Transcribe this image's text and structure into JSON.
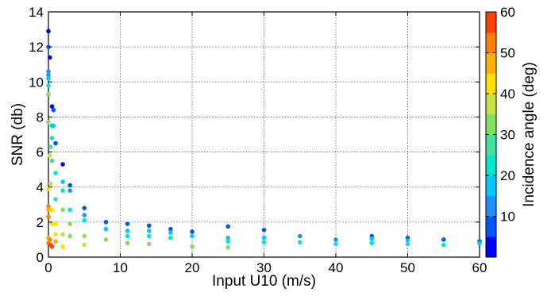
{
  "chart_data": {
    "type": "scatter",
    "xlabel": "Input U10 (m/s)",
    "ylabel": "SNR (db)",
    "xlim": [
      0,
      60
    ],
    "ylim": [
      0,
      14
    ],
    "xticks": [
      "0",
      "10",
      "20",
      "30",
      "40",
      "50",
      "60"
    ],
    "yticks": [
      "0",
      "2",
      "4",
      "6",
      "8",
      "10",
      "12",
      "14"
    ],
    "grid": true,
    "colorbar": {
      "label": "Incidence angle (deg)",
      "range": [
        0,
        60
      ],
      "ticks": [
        "10",
        "20",
        "30",
        "40",
        "50",
        "60"
      ],
      "colors": [
        "#0000ff",
        "#0055ff",
        "#1e90ff",
        "#00c8ff",
        "#00e8c8",
        "#40e0a0",
        "#80e060",
        "#c8e040",
        "#ffe000",
        "#ffb000",
        "#ff8000",
        "#ff4000"
      ]
    },
    "points": [
      {
        "x": 0,
        "y": 12.9,
        "c": 2
      },
      {
        "x": 0,
        "y": 12.0,
        "c": 8
      },
      {
        "x": 0.2,
        "y": 11.4,
        "c": 4
      },
      {
        "x": 0,
        "y": 10.6,
        "c": 12
      },
      {
        "x": 0,
        "y": 10.4,
        "c": 14
      },
      {
        "x": 0,
        "y": 10.2,
        "c": 17
      },
      {
        "x": 0,
        "y": 9.8,
        "c": 22
      },
      {
        "x": 0,
        "y": 9.3,
        "c": 30
      },
      {
        "x": 0.5,
        "y": 8.6,
        "c": 4
      },
      {
        "x": 0.7,
        "y": 8.4,
        "c": 6
      },
      {
        "x": 0,
        "y": 7.7,
        "c": 33
      },
      {
        "x": 0.5,
        "y": 7.5,
        "c": 15
      },
      {
        "x": 0.7,
        "y": 7.5,
        "c": 18
      },
      {
        "x": 0.5,
        "y": 6.8,
        "c": 20
      },
      {
        "x": 0.3,
        "y": 6.3,
        "c": 25
      },
      {
        "x": 1.0,
        "y": 6.5,
        "c": 6
      },
      {
        "x": 0.2,
        "y": 5.8,
        "c": 35
      },
      {
        "x": 0.5,
        "y": 5.5,
        "c": 28
      },
      {
        "x": 2.0,
        "y": 5.3,
        "c": 4
      },
      {
        "x": 1.0,
        "y": 4.8,
        "c": 22
      },
      {
        "x": 2.0,
        "y": 4.3,
        "c": 16
      },
      {
        "x": 3.0,
        "y": 4.1,
        "c": 9
      },
      {
        "x": 0.3,
        "y": 4.2,
        "c": 38
      },
      {
        "x": 3.0,
        "y": 3.8,
        "c": 12
      },
      {
        "x": 2.0,
        "y": 3.8,
        "c": 20
      },
      {
        "x": 0,
        "y": 3.9,
        "c": 40
      },
      {
        "x": 1.0,
        "y": 3.3,
        "c": 28
      },
      {
        "x": 0,
        "y": 2.9,
        "c": 50
      },
      {
        "x": 0,
        "y": 2.7,
        "c": 45
      },
      {
        "x": 0.5,
        "y": 2.7,
        "c": 42
      },
      {
        "x": 2.0,
        "y": 2.7,
        "c": 30
      },
      {
        "x": 3.0,
        "y": 2.7,
        "c": 24
      },
      {
        "x": 5.0,
        "y": 2.8,
        "c": 6
      },
      {
        "x": 0,
        "y": 2.3,
        "c": 52
      },
      {
        "x": 5.0,
        "y": 2.4,
        "c": 14
      },
      {
        "x": 5.0,
        "y": 2.1,
        "c": 20
      },
      {
        "x": 0.5,
        "y": 1.9,
        "c": 44
      },
      {
        "x": 1.0,
        "y": 1.9,
        "c": 40
      },
      {
        "x": 3.0,
        "y": 1.9,
        "c": 30
      },
      {
        "x": 8.0,
        "y": 2.0,
        "c": 5
      },
      {
        "x": 8.0,
        "y": 1.6,
        "c": 16
      },
      {
        "x": 11.0,
        "y": 1.9,
        "c": 8
      },
      {
        "x": 11.0,
        "y": 1.5,
        "c": 15
      },
      {
        "x": 11.0,
        "y": 1.2,
        "c": 22
      },
      {
        "x": 14.0,
        "y": 1.8,
        "c": 8
      },
      {
        "x": 14.0,
        "y": 1.5,
        "c": 15
      },
      {
        "x": 14.0,
        "y": 1.2,
        "c": 22
      },
      {
        "x": 17.0,
        "y": 1.6,
        "c": 8
      },
      {
        "x": 17.0,
        "y": 1.4,
        "c": 15
      },
      {
        "x": 17.0,
        "y": 1.1,
        "c": 22
      },
      {
        "x": 20.0,
        "y": 1.45,
        "c": 8
      },
      {
        "x": 20.0,
        "y": 1.2,
        "c": 15
      },
      {
        "x": 25.0,
        "y": 1.75,
        "c": 6
      },
      {
        "x": 25.0,
        "y": 1.1,
        "c": 15
      },
      {
        "x": 25.0,
        "y": 0.9,
        "c": 22
      },
      {
        "x": 30.0,
        "y": 1.55,
        "c": 6
      },
      {
        "x": 30.0,
        "y": 1.1,
        "c": 15
      },
      {
        "x": 30.0,
        "y": 0.85,
        "c": 22
      },
      {
        "x": 35.0,
        "y": 1.2,
        "c": 10
      },
      {
        "x": 35.0,
        "y": 0.85,
        "c": 20
      },
      {
        "x": 40.0,
        "y": 1.0,
        "c": 10
      },
      {
        "x": 40.0,
        "y": 0.75,
        "c": 20
      },
      {
        "x": 45.0,
        "y": 1.2,
        "c": 8
      },
      {
        "x": 45.0,
        "y": 1.05,
        "c": 15
      },
      {
        "x": 45.0,
        "y": 0.8,
        "c": 22
      },
      {
        "x": 50.0,
        "y": 1.1,
        "c": 8
      },
      {
        "x": 50.0,
        "y": 0.95,
        "c": 15
      },
      {
        "x": 50.0,
        "y": 0.75,
        "c": 22
      },
      {
        "x": 55.0,
        "y": 1.0,
        "c": 8
      },
      {
        "x": 55.0,
        "y": 0.7,
        "c": 20
      },
      {
        "x": 60.0,
        "y": 0.9,
        "c": 8
      },
      {
        "x": 60.0,
        "y": 0.8,
        "c": 15
      },
      {
        "x": 1.0,
        "y": 1.3,
        "c": 42
      },
      {
        "x": 2.0,
        "y": 1.3,
        "c": 36
      },
      {
        "x": 3.0,
        "y": 1.2,
        "c": 33
      },
      {
        "x": 5.0,
        "y": 1.2,
        "c": 30
      },
      {
        "x": 8.0,
        "y": 1.0,
        "c": 30
      },
      {
        "x": 11.0,
        "y": 0.8,
        "c": 30
      },
      {
        "x": 14.0,
        "y": 0.75,
        "c": 30
      },
      {
        "x": 20.0,
        "y": 0.6,
        "c": 32
      },
      {
        "x": 25.0,
        "y": 0.55,
        "c": 32
      },
      {
        "x": 0,
        "y": 1.1,
        "c": 48
      },
      {
        "x": 0,
        "y": 0.8,
        "c": 50
      },
      {
        "x": 0.3,
        "y": 0.7,
        "c": 55
      },
      {
        "x": 0.5,
        "y": 0.6,
        "c": 56
      },
      {
        "x": 0.2,
        "y": 1.0,
        "c": 52
      },
      {
        "x": 1.0,
        "y": 0.9,
        "c": 46
      },
      {
        "x": 2.0,
        "y": 0.6,
        "c": 44
      },
      {
        "x": 5.0,
        "y": 0.7,
        "c": 38
      }
    ]
  }
}
